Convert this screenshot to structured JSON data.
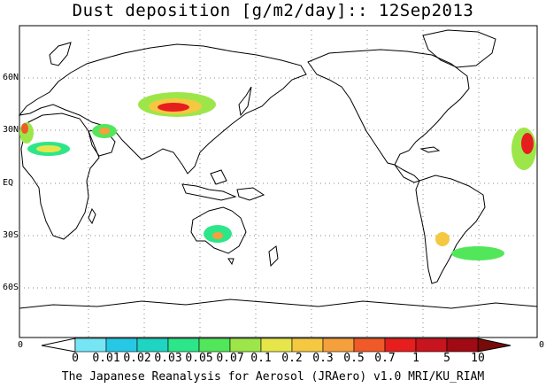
{
  "title": "Dust deposition [g/m2/day]:: 12Sep2013",
  "lat_labels": [
    "60N",
    "30N",
    "EQ",
    "30S",
    "60S"
  ],
  "colorbar": {
    "labels": [
      "0",
      "0.01",
      "0.02",
      "0.03",
      "0.05",
      "0.07",
      "0.1",
      "0.2",
      "0.3",
      "0.5",
      "0.7",
      "1",
      "5",
      "10"
    ],
    "colors": [
      "#ffffff",
      "#76e6f5",
      "#26c8e6",
      "#1fd4c0",
      "#2ee68a",
      "#52e65a",
      "#9de64a",
      "#e6e64a",
      "#f5c842",
      "#f5a03c",
      "#f05a28",
      "#e61e1e",
      "#c8141e",
      "#a00a14",
      "#780a0a"
    ],
    "left_end": "0",
    "right_end": "0"
  },
  "footer": "The Japanese Reanalysis for Aerosol (JRAero) v1.0 MRI/KU_RIAM"
}
